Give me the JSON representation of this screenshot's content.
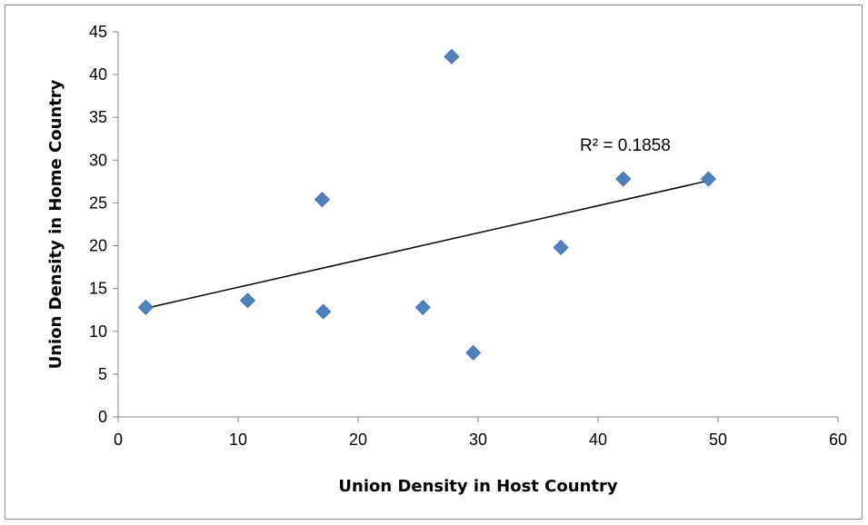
{
  "chart_data": {
    "type": "scatter",
    "title": "",
    "xlabel": "Union Density in Host Country",
    "ylabel": "Union Density in Home Country",
    "xlim": [
      0,
      60
    ],
    "ylim": [
      0,
      45
    ],
    "xticks": [
      0,
      10,
      20,
      30,
      40,
      50,
      60
    ],
    "yticks": [
      0,
      5,
      10,
      15,
      20,
      25,
      30,
      35,
      40,
      45
    ],
    "grid": false,
    "legend": "none",
    "marker": "diamond",
    "marker_color": "#4f81bd",
    "series": [
      {
        "x": [
          2.3,
          10.8,
          17.0,
          17.1,
          25.4,
          27.8,
          29.6,
          36.9,
          42.1,
          49.2
        ],
        "y": [
          12.8,
          13.6,
          25.4,
          12.3,
          12.8,
          42.1,
          7.5,
          19.8,
          27.8,
          27.8
        ]
      }
    ],
    "trendline": {
      "type": "linear",
      "x_range": [
        2.3,
        49.2
      ],
      "y_range": [
        12.7,
        27.6
      ],
      "color": "#000000",
      "annotation": "R² = 0.1858"
    }
  }
}
